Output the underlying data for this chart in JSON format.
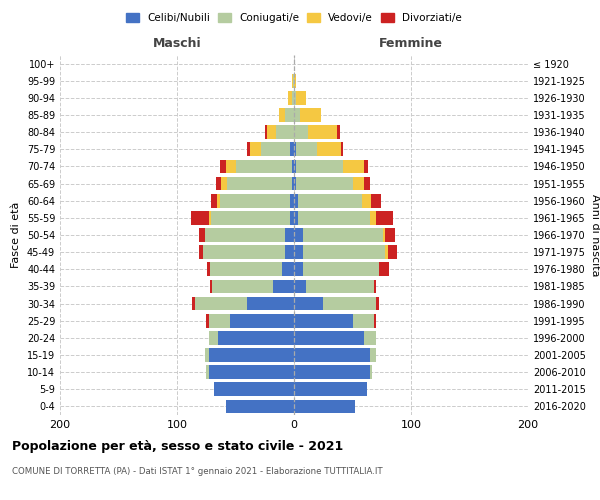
{
  "age_groups": [
    "0-4",
    "5-9",
    "10-14",
    "15-19",
    "20-24",
    "25-29",
    "30-34",
    "35-39",
    "40-44",
    "45-49",
    "50-54",
    "55-59",
    "60-64",
    "65-69",
    "70-74",
    "75-79",
    "80-84",
    "85-89",
    "90-94",
    "95-99",
    "100+"
  ],
  "birth_years": [
    "2016-2020",
    "2011-2015",
    "2006-2010",
    "2001-2005",
    "1996-2000",
    "1991-1995",
    "1986-1990",
    "1981-1985",
    "1976-1980",
    "1971-1975",
    "1966-1970",
    "1961-1965",
    "1956-1960",
    "1951-1955",
    "1946-1950",
    "1941-1945",
    "1936-1940",
    "1931-1935",
    "1926-1930",
    "1921-1925",
    "≤ 1920"
  ],
  "colors": {
    "celibi": "#4472c4",
    "coniugati": "#b5cca0",
    "vedovi": "#f5c842",
    "divorziati": "#cc2222"
  },
  "maschi": {
    "celibi": [
      58,
      68,
      73,
      73,
      65,
      55,
      40,
      18,
      10,
      8,
      8,
      3,
      3,
      2,
      2,
      3,
      0,
      0,
      0,
      0,
      0
    ],
    "coniugati": [
      0,
      0,
      2,
      3,
      8,
      18,
      45,
      52,
      62,
      70,
      68,
      68,
      60,
      55,
      48,
      25,
      15,
      8,
      2,
      1,
      0
    ],
    "vedovi": [
      0,
      0,
      0,
      0,
      0,
      0,
      0,
      0,
      0,
      0,
      0,
      2,
      3,
      5,
      8,
      10,
      8,
      5,
      3,
      1,
      0
    ],
    "divorziati": [
      0,
      0,
      0,
      0,
      0,
      2,
      2,
      2,
      2,
      3,
      5,
      15,
      5,
      5,
      5,
      2,
      2,
      0,
      0,
      0,
      0
    ]
  },
  "femmine": {
    "nubili": [
      52,
      62,
      65,
      65,
      60,
      50,
      25,
      10,
      8,
      8,
      8,
      3,
      3,
      2,
      2,
      2,
      0,
      0,
      0,
      0,
      0
    ],
    "coniugate": [
      0,
      0,
      2,
      5,
      10,
      18,
      45,
      58,
      65,
      70,
      68,
      62,
      55,
      48,
      40,
      18,
      12,
      5,
      2,
      0,
      0
    ],
    "vedove": [
      0,
      0,
      0,
      0,
      0,
      0,
      0,
      0,
      0,
      2,
      2,
      5,
      8,
      10,
      18,
      20,
      25,
      18,
      8,
      2,
      0
    ],
    "divorziate": [
      0,
      0,
      0,
      0,
      0,
      2,
      3,
      2,
      8,
      8,
      8,
      15,
      8,
      5,
      3,
      2,
      2,
      0,
      0,
      0,
      0
    ]
  },
  "xlim": 200,
  "title": "Popolazione per età, sesso e stato civile - 2021",
  "subtitle": "COMUNE DI TORRETTA (PA) - Dati ISTAT 1° gennaio 2021 - Elaborazione TUTTITALIA.IT",
  "ylabel_left": "Fasce di età",
  "ylabel_right": "Anni di nascita",
  "xlabel_maschi": "Maschi",
  "xlabel_femmine": "Femmine"
}
